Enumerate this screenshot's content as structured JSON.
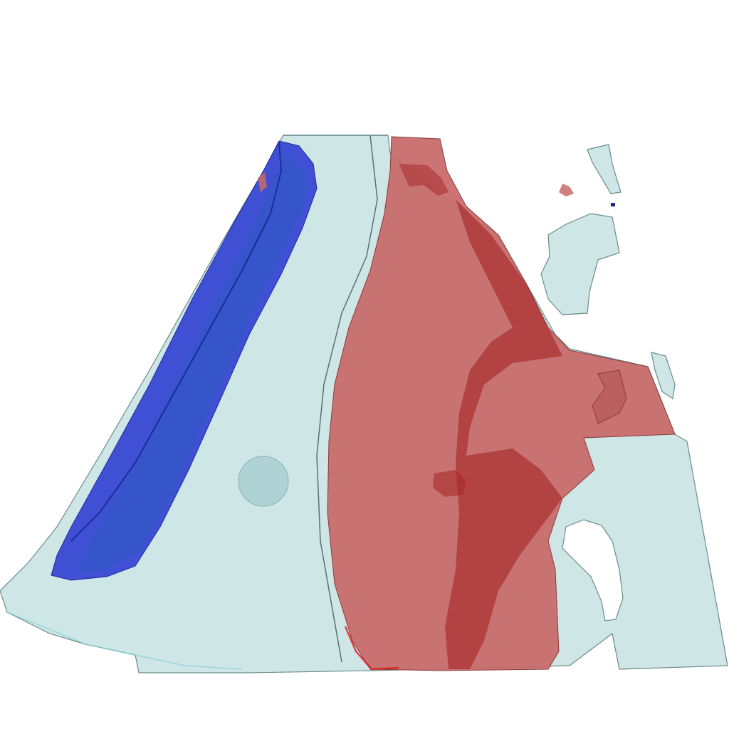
{
  "scene": {
    "background_color": "#ffffff",
    "colors": {
      "translucent_body": "#c7e2e3",
      "translucent_edge": "#6a8a8a",
      "blue_region": "#2f3fd1",
      "blue_region_dark": "#1d2b9a",
      "red_region": "#c86868",
      "red_region_dark": "#a82a2a",
      "red_highlight": "#e01a1a",
      "sphere": "#a9cfd0"
    },
    "objects": [
      "translucent-volume",
      "blue-region",
      "red-region",
      "sphere-marker",
      "floating-fragments"
    ]
  }
}
